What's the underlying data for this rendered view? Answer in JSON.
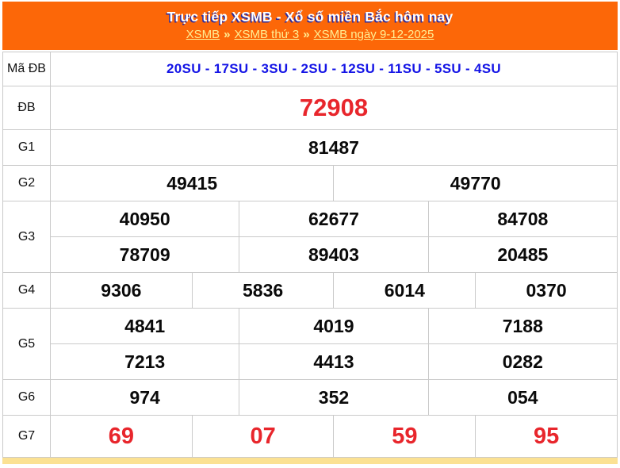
{
  "header": {
    "title": "Trực tiếp XSMB - Xổ số miền Bắc hôm nay",
    "breadcrumb": {
      "separator": "»",
      "links": [
        "XSMB",
        "XSMB thứ 3",
        "XSMB ngày 9-12-2025"
      ]
    }
  },
  "results": {
    "rows": [
      {
        "id": "ma-db",
        "label": "Mã ĐB",
        "emphasis": "code",
        "lines": [
          [
            "20SU - 17SU - 3SU - 2SU - 12SU - 11SU - 5SU - 4SU"
          ]
        ]
      },
      {
        "id": "db",
        "label": "ĐB",
        "emphasis": "special",
        "lines": [
          [
            "72908"
          ]
        ]
      },
      {
        "id": "g1",
        "label": "G1",
        "emphasis": "normal",
        "lines": [
          [
            "81487"
          ]
        ]
      },
      {
        "id": "g2",
        "label": "G2",
        "emphasis": "normal",
        "lines": [
          [
            "49415",
            "49770"
          ]
        ]
      },
      {
        "id": "g3",
        "label": "G3",
        "emphasis": "normal",
        "lines": [
          [
            "40950",
            "62677",
            "84708"
          ],
          [
            "78709",
            "89403",
            "20485"
          ]
        ]
      },
      {
        "id": "g4",
        "label": "G4",
        "emphasis": "normal",
        "lines": [
          [
            "9306",
            "5836",
            "6014",
            "0370"
          ]
        ]
      },
      {
        "id": "g5",
        "label": "G5",
        "emphasis": "normal",
        "lines": [
          [
            "4841",
            "4019",
            "7188"
          ],
          [
            "7213",
            "4413",
            "0282"
          ]
        ]
      },
      {
        "id": "g6",
        "label": "G6",
        "emphasis": "normal",
        "lines": [
          [
            "974",
            "352",
            "054"
          ]
        ]
      },
      {
        "id": "g7",
        "label": "G7",
        "emphasis": "red",
        "lines": [
          [
            "69",
            "07",
            "59",
            "95"
          ]
        ]
      }
    ]
  },
  "colors": {
    "header_orange": "#FC6708",
    "title_text": "#FFFFFF",
    "title_shadow": "#2B2B9E",
    "breadcrumb_link": "#FFEE94",
    "code_blue": "#1414E6",
    "result_red": "#E8262C",
    "number_black": "#0A0A0A",
    "border_gray": "#CACACA",
    "bottom_strip_yellow": "#FBE193"
  }
}
